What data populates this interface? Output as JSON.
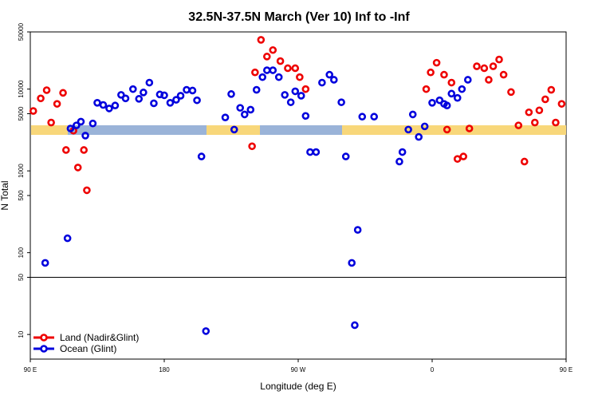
{
  "chart_data": {
    "type": "scatter",
    "title": "32.5N-37.5N March (Ver 10)   Inf to -Inf",
    "xlabel": "Longitude (deg E)",
    "ylabel": "N Total",
    "x_scale": "linear",
    "y_scale": "log",
    "xlim": [
      90,
      450
    ],
    "ylim": [
      5,
      50000
    ],
    "x_ticks": [
      {
        "value": 90,
        "label": "90 E"
      },
      {
        "value": 180,
        "label": "180"
      },
      {
        "value": 270,
        "label": "90 W"
      },
      {
        "value": 360,
        "label": "0"
      },
      {
        "value": 450,
        "label": "90 E"
      },
      {
        "value": 540,
        "label": "180"
      }
    ],
    "y_ticks": [
      {
        "value": 10,
        "label": "10"
      },
      {
        "value": 50,
        "label": "50"
      },
      {
        "value": 100,
        "label": "100"
      },
      {
        "value": 500,
        "label": "500"
      },
      {
        "value": 1000,
        "label": "1000"
      },
      {
        "value": 5000,
        "label": "5000"
      },
      {
        "value": 10000,
        "label": "10000"
      },
      {
        "value": 50000,
        "label": "50000"
      }
    ],
    "reference_line": 50,
    "legend_position": "bottom-left",
    "series": [
      {
        "name": "Land (Nadir&Glint)",
        "color": "#ee0000",
        "points": [
          [
            92,
            5400
          ],
          [
            97,
            7700
          ],
          [
            101,
            9700
          ],
          [
            104,
            3900
          ],
          [
            108,
            6600
          ],
          [
            112,
            9000
          ],
          [
            114,
            1800
          ],
          [
            119,
            3100
          ],
          [
            122,
            1100
          ],
          [
            126,
            1800
          ],
          [
            128,
            580
          ],
          [
            239,
            2000
          ],
          [
            241,
            16000
          ],
          [
            245,
            40000
          ],
          [
            249,
            25000
          ],
          [
            253,
            30000
          ],
          [
            258,
            22000
          ],
          [
            263,
            18000
          ],
          [
            268,
            18000
          ],
          [
            271,
            14000
          ],
          [
            275,
            10000
          ],
          [
            356,
            10000
          ],
          [
            359,
            16000
          ],
          [
            363,
            21000
          ],
          [
            368,
            15000
          ],
          [
            370,
            3200
          ],
          [
            373,
            12000
          ],
          [
            377,
            1400
          ],
          [
            381,
            1500
          ],
          [
            385,
            3300
          ],
          [
            390,
            19000
          ],
          [
            395,
            18000
          ],
          [
            398,
            13000
          ],
          [
            401,
            19000
          ],
          [
            405,
            23000
          ],
          [
            408,
            15000
          ],
          [
            413,
            9200
          ],
          [
            418,
            3600
          ],
          [
            422,
            1300
          ],
          [
            425,
            5200
          ],
          [
            429,
            3900
          ],
          [
            432,
            5500
          ],
          [
            436,
            7500
          ],
          [
            440,
            9800
          ],
          [
            443,
            3900
          ],
          [
            447,
            6600
          ],
          [
            452,
            9000
          ],
          [
            454,
            1800
          ],
          [
            459,
            3100
          ],
          [
            462,
            1100
          ],
          [
            466,
            1800
          ],
          [
            468,
            580
          ]
        ]
      },
      {
        "name": "Ocean (Glint)",
        "color": "#0000dd",
        "points": [
          [
            100,
            75
          ],
          [
            115,
            150
          ],
          [
            117,
            3300
          ],
          [
            121,
            3600
          ],
          [
            124,
            4000
          ],
          [
            127,
            2700
          ],
          [
            132,
            3800
          ],
          [
            135,
            6800
          ],
          [
            139,
            6400
          ],
          [
            143,
            5800
          ],
          [
            147,
            6300
          ],
          [
            151,
            8500
          ],
          [
            154,
            7700
          ],
          [
            159,
            10000
          ],
          [
            163,
            7600
          ],
          [
            166,
            9100
          ],
          [
            170,
            12000
          ],
          [
            173,
            6700
          ],
          [
            177,
            8600
          ],
          [
            180,
            8400
          ],
          [
            184,
            6800
          ],
          [
            188,
            7400
          ],
          [
            191,
            8300
          ],
          [
            195,
            9800
          ],
          [
            199,
            9600
          ],
          [
            202,
            7300
          ],
          [
            205,
            1500
          ],
          [
            208,
            11
          ],
          [
            221,
            4500
          ],
          [
            225,
            8700
          ],
          [
            227,
            3200
          ],
          [
            231,
            5900
          ],
          [
            234,
            4900
          ],
          [
            238,
            5600
          ],
          [
            242,
            9800
          ],
          [
            246,
            14000
          ],
          [
            249,
            17000
          ],
          [
            253,
            17000
          ],
          [
            257,
            14000
          ],
          [
            261,
            8500
          ],
          [
            265,
            6900
          ],
          [
            268,
            9400
          ],
          [
            272,
            8300
          ],
          [
            275,
            4700
          ],
          [
            278,
            1700
          ],
          [
            282,
            1700
          ],
          [
            286,
            12000
          ],
          [
            291,
            15000
          ],
          [
            294,
            13000
          ],
          [
            299,
            6900
          ],
          [
            302,
            1500
          ],
          [
            306,
            75
          ],
          [
            308,
            13
          ],
          [
            310,
            190
          ],
          [
            313,
            4600
          ],
          [
            321,
            4600
          ],
          [
            338,
            1300
          ],
          [
            340,
            1700
          ],
          [
            344,
            3200
          ],
          [
            347,
            4900
          ],
          [
            351,
            2600
          ],
          [
            355,
            3500
          ],
          [
            360,
            6800
          ],
          [
            365,
            7300
          ],
          [
            368,
            6600
          ],
          [
            370,
            6300
          ],
          [
            373,
            8800
          ],
          [
            377,
            7800
          ],
          [
            380,
            10000
          ],
          [
            384,
            13000
          ]
        ]
      }
    ]
  }
}
